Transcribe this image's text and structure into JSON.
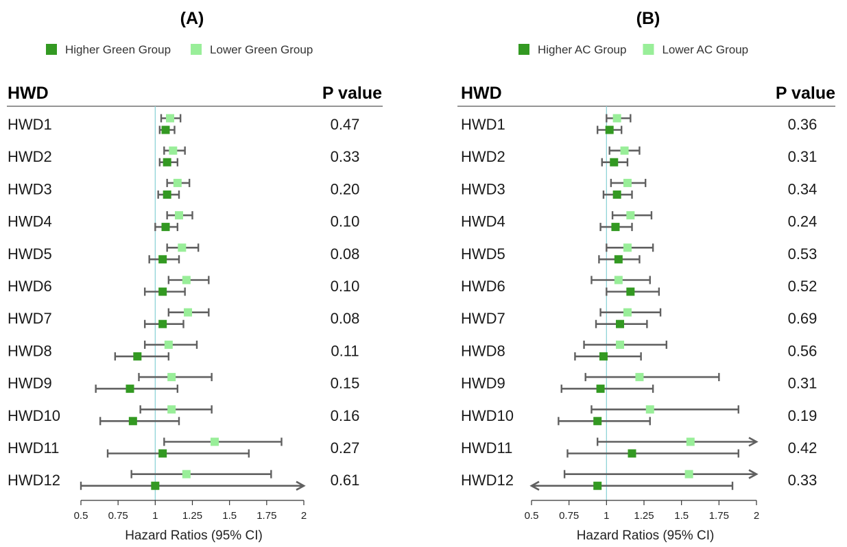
{
  "chart_data": [
    {
      "type": "forest",
      "panel_label": "(A)",
      "row_header": "HWD",
      "pvalue_header": "P value",
      "xlabel": "Hazard Ratios (95% CI)",
      "xlim": [
        0.5,
        2
      ],
      "xticks": [
        0.5,
        0.75,
        1,
        1.25,
        1.5,
        1.75,
        2
      ],
      "tick_labels": [
        "0.5",
        "0.75",
        "1",
        "1.25",
        "1.5",
        "1.75",
        "2"
      ],
      "reference_line": 1,
      "series": [
        {
          "name": "Higher Green Group",
          "color": "#339922"
        },
        {
          "name": "Lower Green Group",
          "color": "#99ee99"
        }
      ],
      "rows": [
        {
          "label": "HWD1",
          "p": "0.47",
          "higher": {
            "hr": 1.07,
            "lo": 1.03,
            "hi": 1.13
          },
          "lower": {
            "hr": 1.1,
            "lo": 1.04,
            "hi": 1.17
          }
        },
        {
          "label": "HWD2",
          "p": "0.33",
          "higher": {
            "hr": 1.08,
            "lo": 1.03,
            "hi": 1.15
          },
          "lower": {
            "hr": 1.12,
            "lo": 1.06,
            "hi": 1.2
          }
        },
        {
          "label": "HWD3",
          "p": "0.20",
          "higher": {
            "hr": 1.08,
            "lo": 1.02,
            "hi": 1.16
          },
          "lower": {
            "hr": 1.15,
            "lo": 1.08,
            "hi": 1.23
          }
        },
        {
          "label": "HWD4",
          "p": "0.10",
          "higher": {
            "hr": 1.07,
            "lo": 1.0,
            "hi": 1.15
          },
          "lower": {
            "hr": 1.16,
            "lo": 1.08,
            "hi": 1.25
          }
        },
        {
          "label": "HWD5",
          "p": "0.08",
          "higher": {
            "hr": 1.05,
            "lo": 0.96,
            "hi": 1.16
          },
          "lower": {
            "hr": 1.18,
            "lo": 1.08,
            "hi": 1.29
          }
        },
        {
          "label": "HWD6",
          "p": "0.10",
          "higher": {
            "hr": 1.05,
            "lo": 0.93,
            "hi": 1.2
          },
          "lower": {
            "hr": 1.21,
            "lo": 1.09,
            "hi": 1.36
          }
        },
        {
          "label": "HWD7",
          "p": "0.08",
          "higher": {
            "hr": 1.05,
            "lo": 0.93,
            "hi": 1.19
          },
          "lower": {
            "hr": 1.22,
            "lo": 1.09,
            "hi": 1.36
          }
        },
        {
          "label": "HWD8",
          "p": "0.11",
          "higher": {
            "hr": 0.88,
            "lo": 0.73,
            "hi": 1.09
          },
          "lower": {
            "hr": 1.09,
            "lo": 0.93,
            "hi": 1.28
          }
        },
        {
          "label": "HWD9",
          "p": "0.15",
          "higher": {
            "hr": 0.83,
            "lo": 0.6,
            "hi": 1.15
          },
          "lower": {
            "hr": 1.11,
            "lo": 0.89,
            "hi": 1.38
          }
        },
        {
          "label": "HWD10",
          "p": "0.16",
          "higher": {
            "hr": 0.85,
            "lo": 0.63,
            "hi": 1.16
          },
          "lower": {
            "hr": 1.11,
            "lo": 0.9,
            "hi": 1.38
          }
        },
        {
          "label": "HWD11",
          "p": "0.27",
          "higher": {
            "hr": 1.05,
            "lo": 0.68,
            "hi": 1.63
          },
          "lower": {
            "hr": 1.4,
            "lo": 1.06,
            "hi": 1.85
          }
        },
        {
          "label": "HWD12",
          "p": "0.61",
          "higher": {
            "hr": 1.0,
            "lo": 0.5,
            "hi": 2.0,
            "arrow_right": true
          },
          "lower": {
            "hr": 1.21,
            "lo": 0.84,
            "hi": 1.78
          }
        }
      ]
    },
    {
      "type": "forest",
      "panel_label": "(B)",
      "row_header": "HWD",
      "pvalue_header": "P value",
      "xlabel": "Hazard Ratios (95% CI)",
      "xlim": [
        0.5,
        2
      ],
      "xticks": [
        0.5,
        0.75,
        1,
        1.25,
        1.5,
        1.75,
        2
      ],
      "tick_labels": [
        "0.5",
        "0.75",
        "1",
        "1.25",
        "1.5",
        "1.75",
        "2"
      ],
      "reference_line": 1,
      "series": [
        {
          "name": "Higher AC Group",
          "color": "#339922"
        },
        {
          "name": "Lower AC Group",
          "color": "#99ee99"
        }
      ],
      "rows": [
        {
          "label": "HWD1",
          "p": "0.36",
          "higher": {
            "hr": 1.02,
            "lo": 0.94,
            "hi": 1.1
          },
          "lower": {
            "hr": 1.07,
            "lo": 1.0,
            "hi": 1.16
          }
        },
        {
          "label": "HWD2",
          "p": "0.31",
          "higher": {
            "hr": 1.05,
            "lo": 0.97,
            "hi": 1.14
          },
          "lower": {
            "hr": 1.12,
            "lo": 1.02,
            "hi": 1.22
          }
        },
        {
          "label": "HWD3",
          "p": "0.34",
          "higher": {
            "hr": 1.07,
            "lo": 0.98,
            "hi": 1.17
          },
          "lower": {
            "hr": 1.14,
            "lo": 1.03,
            "hi": 1.26
          }
        },
        {
          "label": "HWD4",
          "p": "0.24",
          "higher": {
            "hr": 1.06,
            "lo": 0.96,
            "hi": 1.17
          },
          "lower": {
            "hr": 1.16,
            "lo": 1.04,
            "hi": 1.3
          }
        },
        {
          "label": "HWD5",
          "p": "0.53",
          "higher": {
            "hr": 1.08,
            "lo": 0.95,
            "hi": 1.22
          },
          "lower": {
            "hr": 1.14,
            "lo": 1.0,
            "hi": 1.31
          }
        },
        {
          "label": "HWD6",
          "p": "0.52",
          "higher": {
            "hr": 1.16,
            "lo": 1.0,
            "hi": 1.35
          },
          "lower": {
            "hr": 1.08,
            "lo": 0.9,
            "hi": 1.29
          }
        },
        {
          "label": "HWD7",
          "p": "0.69",
          "higher": {
            "hr": 1.09,
            "lo": 0.93,
            "hi": 1.27
          },
          "lower": {
            "hr": 1.14,
            "lo": 0.96,
            "hi": 1.36
          }
        },
        {
          "label": "HWD8",
          "p": "0.56",
          "higher": {
            "hr": 0.98,
            "lo": 0.79,
            "hi": 1.23
          },
          "lower": {
            "hr": 1.09,
            "lo": 0.85,
            "hi": 1.4
          }
        },
        {
          "label": "HWD9",
          "p": "0.31",
          "higher": {
            "hr": 0.96,
            "lo": 0.7,
            "hi": 1.31
          },
          "lower": {
            "hr": 1.22,
            "lo": 0.86,
            "hi": 1.75
          }
        },
        {
          "label": "HWD10",
          "p": "0.19",
          "higher": {
            "hr": 0.94,
            "lo": 0.68,
            "hi": 1.29
          },
          "lower": {
            "hr": 1.29,
            "lo": 0.9,
            "hi": 1.88
          }
        },
        {
          "label": "HWD11",
          "p": "0.42",
          "higher": {
            "hr": 1.17,
            "lo": 0.74,
            "hi": 1.88
          },
          "lower": {
            "hr": 1.56,
            "lo": 0.94,
            "hi": 2.0,
            "arrow_right": true
          }
        },
        {
          "label": "HWD12",
          "p": "0.33",
          "higher": {
            "hr": 0.94,
            "lo": 0.5,
            "hi": 1.84,
            "arrow_left": true
          },
          "lower": {
            "hr": 1.55,
            "lo": 0.72,
            "hi": 2.0,
            "arrow_right": true
          }
        }
      ]
    }
  ]
}
